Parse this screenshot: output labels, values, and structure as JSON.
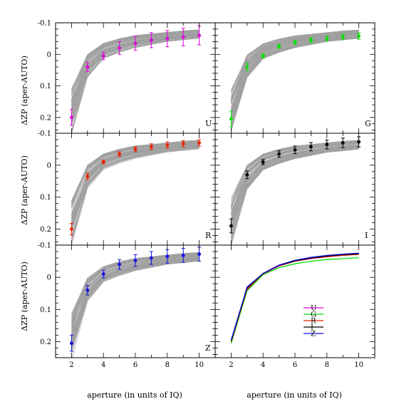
{
  "figure": {
    "ylabel": "ΔZP (aper-AUTO)",
    "xlabel": "aperture (in units of IQ)"
  },
  "colors": {
    "U": "#e000e0",
    "G": "#00e000",
    "R": "#ee2200",
    "I": "#000000",
    "Z": "#1010e0",
    "model": "#a0a0a0"
  },
  "chart_data": [
    {
      "type": "line",
      "band": "U",
      "panel_label": "U",
      "x": [
        2,
        3,
        4,
        5,
        6,
        7,
        8,
        9,
        10
      ],
      "series": [
        {
          "kind": "measured",
          "values": [
            0.2,
            0.04,
            0.005,
            -0.02,
            -0.035,
            -0.045,
            -0.05,
            -0.055,
            -0.06
          ],
          "errors": [
            0.025,
            0.015,
            0.012,
            0.02,
            0.022,
            0.024,
            0.026,
            0.028,
            0.03
          ]
        },
        {
          "kind": "model-band",
          "upper": [
            0.24,
            0.075,
            0.015,
            -0.005,
            -0.02,
            -0.03,
            -0.04,
            -0.045,
            -0.05
          ],
          "lower": [
            0.12,
            0.0,
            -0.035,
            -0.05,
            -0.06,
            -0.065,
            -0.07,
            -0.075,
            -0.078
          ]
        }
      ],
      "xlim": [
        1,
        11
      ],
      "ylim": [
        0.25,
        -0.1
      ],
      "yticks": [
        -0.1,
        0,
        0.1,
        0.2
      ],
      "xticks": [
        2,
        4,
        6,
        8,
        10
      ]
    },
    {
      "type": "line",
      "band": "G",
      "panel_label": "G",
      "x": [
        2,
        3,
        4,
        5,
        6,
        7,
        8,
        9,
        10
      ],
      "series": [
        {
          "kind": "measured",
          "values": [
            0.205,
            0.04,
            0.005,
            -0.025,
            -0.038,
            -0.045,
            -0.05,
            -0.055,
            -0.058
          ],
          "errors": [
            0.025,
            0.012,
            0.006,
            0.006,
            0.006,
            0.007,
            0.008,
            0.009,
            0.01
          ]
        },
        {
          "kind": "model-band",
          "upper": [
            0.24,
            0.075,
            0.015,
            -0.005,
            -0.02,
            -0.03,
            -0.04,
            -0.045,
            -0.05
          ],
          "lower": [
            0.12,
            0.0,
            -0.035,
            -0.05,
            -0.06,
            -0.065,
            -0.07,
            -0.075,
            -0.078
          ]
        }
      ],
      "xlim": [
        1,
        11
      ],
      "ylim": [
        0.25,
        -0.1
      ],
      "yticks": [
        -0.1,
        0,
        0.1,
        0.2
      ],
      "xticks": [
        2,
        4,
        6,
        8,
        10
      ]
    },
    {
      "type": "line",
      "band": "R",
      "panel_label": "R",
      "x": [
        2,
        3,
        4,
        5,
        6,
        7,
        8,
        9,
        10
      ],
      "series": [
        {
          "kind": "measured",
          "values": [
            0.2,
            0.035,
            -0.01,
            -0.035,
            -0.05,
            -0.058,
            -0.063,
            -0.067,
            -0.07
          ],
          "errors": [
            0.018,
            0.01,
            0.006,
            0.007,
            0.008,
            0.009,
            0.01,
            0.01,
            0.01
          ]
        },
        {
          "kind": "model-band",
          "upper": [
            0.24,
            0.075,
            0.015,
            -0.005,
            -0.02,
            -0.03,
            -0.04,
            -0.045,
            -0.05
          ],
          "lower": [
            0.12,
            0.0,
            -0.035,
            -0.05,
            -0.06,
            -0.065,
            -0.07,
            -0.075,
            -0.078
          ]
        }
      ],
      "xlim": [
        1,
        11
      ],
      "ylim": [
        0.25,
        -0.1
      ],
      "yticks": [
        -0.1,
        0,
        0.1,
        0.2
      ],
      "xticks": [
        2,
        4,
        6,
        8,
        10
      ]
    },
    {
      "type": "line",
      "band": "I",
      "panel_label": "I",
      "x": [
        2,
        3,
        4,
        5,
        6,
        7,
        8,
        9,
        10
      ],
      "series": [
        {
          "kind": "measured",
          "values": [
            0.19,
            0.03,
            -0.01,
            -0.035,
            -0.048,
            -0.058,
            -0.065,
            -0.07,
            -0.073
          ],
          "errors": [
            0.022,
            0.012,
            0.008,
            0.01,
            0.012,
            0.013,
            0.014,
            0.015,
            0.016
          ]
        },
        {
          "kind": "model-band",
          "upper": [
            0.24,
            0.075,
            0.015,
            -0.005,
            -0.02,
            -0.03,
            -0.04,
            -0.045,
            -0.05
          ],
          "lower": [
            0.12,
            0.0,
            -0.035,
            -0.05,
            -0.06,
            -0.065,
            -0.07,
            -0.075,
            -0.078
          ]
        }
      ],
      "xlim": [
        1,
        11
      ],
      "ylim": [
        0.25,
        -0.1
      ],
      "yticks": [
        -0.1,
        0,
        0.1,
        0.2
      ],
      "xticks": [
        2,
        4,
        6,
        8,
        10
      ]
    },
    {
      "type": "line",
      "band": "Z",
      "panel_label": "Z",
      "x": [
        2,
        3,
        4,
        5,
        6,
        7,
        8,
        9,
        10
      ],
      "series": [
        {
          "kind": "measured",
          "values": [
            0.205,
            0.04,
            -0.01,
            -0.04,
            -0.052,
            -0.06,
            -0.065,
            -0.068,
            -0.072
          ],
          "errors": [
            0.025,
            0.015,
            0.012,
            0.015,
            0.018,
            0.02,
            0.021,
            0.022,
            0.022
          ]
        },
        {
          "kind": "model-band",
          "upper": [
            0.24,
            0.075,
            0.015,
            -0.005,
            -0.02,
            -0.03,
            -0.04,
            -0.045,
            -0.05
          ],
          "lower": [
            0.12,
            0.0,
            -0.035,
            -0.05,
            -0.06,
            -0.065,
            -0.07,
            -0.075,
            -0.078
          ]
        }
      ],
      "xlim": [
        1,
        11
      ],
      "ylim": [
        0.25,
        -0.1
      ],
      "yticks": [
        -0.1,
        0,
        0.1,
        0.2
      ],
      "xticks": [
        2,
        4,
        6,
        8,
        10
      ]
    },
    {
      "type": "line",
      "panel_label": "",
      "x": [
        2,
        3,
        4,
        5,
        6,
        7,
        8,
        9,
        10
      ],
      "series": [
        {
          "name": "U",
          "values": [
            0.205,
            0.04,
            -0.01,
            -0.035,
            -0.05,
            -0.058,
            -0.064,
            -0.068,
            -0.072
          ]
        },
        {
          "name": "G",
          "values": [
            0.205,
            0.042,
            -0.008,
            -0.03,
            -0.042,
            -0.05,
            -0.055,
            -0.058,
            -0.061
          ]
        },
        {
          "name": "R",
          "values": [
            0.2,
            0.036,
            -0.011,
            -0.036,
            -0.05,
            -0.059,
            -0.064,
            -0.068,
            -0.071
          ]
        },
        {
          "name": "I",
          "values": [
            0.198,
            0.033,
            -0.012,
            -0.037,
            -0.051,
            -0.06,
            -0.066,
            -0.07,
            -0.073
          ]
        },
        {
          "name": "Z",
          "values": [
            0.195,
            0.03,
            -0.012,
            -0.038,
            -0.053,
            -0.062,
            -0.068,
            -0.072,
            -0.075
          ]
        }
      ],
      "legend": [
        "U",
        "G",
        "R",
        "I",
        "Z"
      ],
      "xlim": [
        1,
        11
      ],
      "ylim": [
        0.25,
        -0.1
      ],
      "xticks": [
        2,
        4,
        6,
        8,
        10
      ]
    }
  ]
}
